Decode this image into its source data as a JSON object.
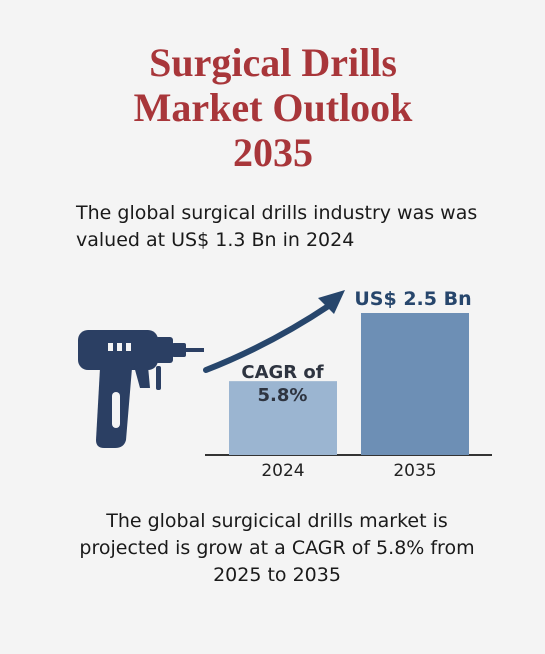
{
  "chart_data": {
    "type": "bar",
    "title": "Surgical Drills Market Outlook 2035",
    "subtitle": "The global surgical drills industry was was valued at US$ 1.3 Bn in 2024",
    "annotation": "CAGR of 5.8%",
    "footer": "The global surgicical drills market is projected is grow at a CAGR of 5.8% from 2025 to 2035",
    "categories": [
      "2024",
      "2035"
    ],
    "values": [
      1.3,
      2.5
    ],
    "value_labels": [
      null,
      "US$ 2.5 Bn"
    ],
    "colors": [
      "#9bb5d1",
      "#6d8fb5"
    ]
  }
}
